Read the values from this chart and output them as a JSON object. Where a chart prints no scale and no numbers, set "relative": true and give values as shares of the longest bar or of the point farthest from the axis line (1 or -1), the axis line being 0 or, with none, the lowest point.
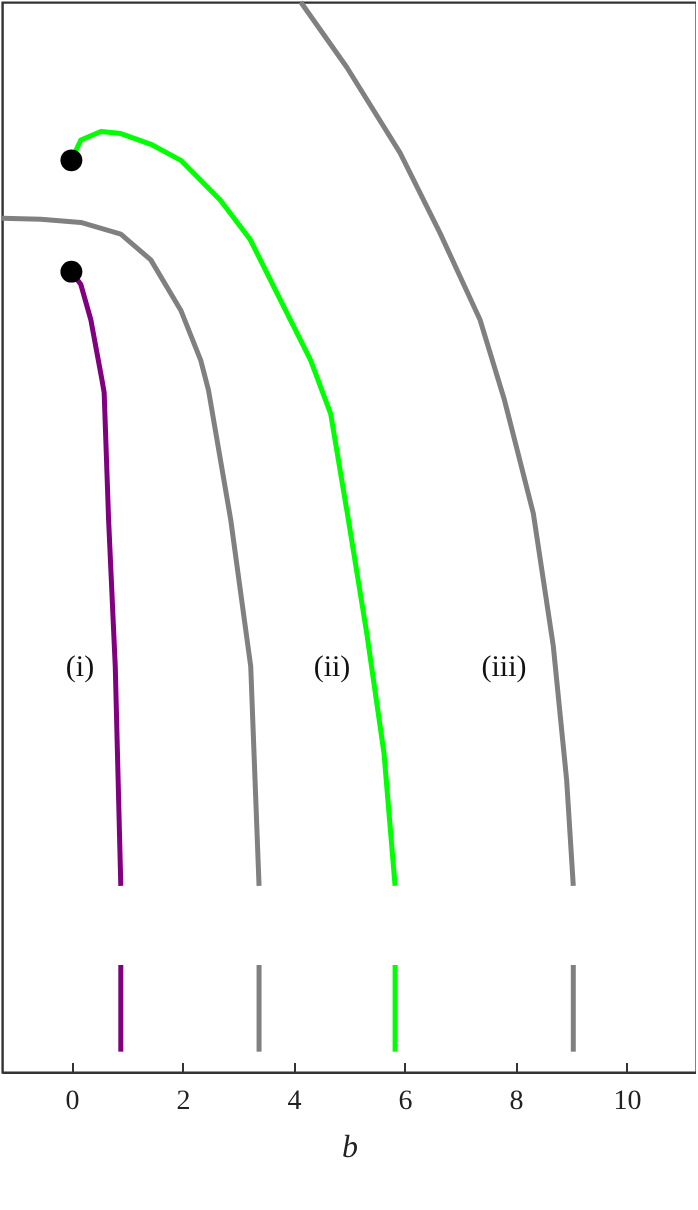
{
  "chart_data": {
    "type": "line",
    "xlabel": "b",
    "relative": true,
    "xlim": [
      -1.25,
      11.25
    ],
    "xticks": [
      0,
      2,
      4,
      6,
      8,
      10
    ],
    "tick_labels": "x",
    "grid": false,
    "line_style": "solid",
    "series": [
      {
        "color": "#800080",
        "x": [
          0,
          0.17,
          0.35,
          0.55,
          0.59,
          0.67,
          0.79,
          0.89
        ],
        "values": [
          0.748,
          0.736,
          0.703,
          0.647,
          0.635,
          0.516,
          0.379,
          0.174
        ]
      },
      {
        "color": "#808080",
        "x": [
          -1.25,
          -0.55,
          0.17,
          0.89,
          1.43,
          1.97,
          2.33,
          2.47,
          2.87,
          3.23,
          3.38
        ],
        "values": [
          0.798,
          0.797,
          0.794,
          0.783,
          0.759,
          0.712,
          0.665,
          0.637,
          0.516,
          0.379,
          0.174
        ]
      },
      {
        "color": "#00ff00",
        "x": [
          0,
          0.17,
          0.53,
          0.89,
          1.43,
          1.97,
          2.68,
          3.22,
          3.77,
          4.31,
          4.67,
          4.97,
          5.32,
          5.63,
          5.83
        ],
        "values": [
          0.852,
          0.871,
          0.879,
          0.877,
          0.867,
          0.852,
          0.815,
          0.778,
          0.721,
          0.665,
          0.615,
          0.522,
          0.41,
          0.298,
          0.174
        ]
      },
      {
        "color": "#808080",
        "x": [
          4.13,
          4.96,
          5.92,
          6.64,
          7.36,
          7.8,
          8.32,
          8.68,
          8.92,
          9.04
        ],
        "values": [
          1.0,
          0.939,
          0.859,
          0.784,
          0.703,
          0.628,
          0.522,
          0.398,
          0.273,
          0.174
        ]
      },
      {
        "color": "#800080",
        "x": [
          0.89,
          0.89
        ],
        "values": [
          0.1,
          0.019
        ]
      },
      {
        "color": "#808080",
        "x": [
          3.38,
          3.38
        ],
        "values": [
          0.1,
          0.019
        ]
      },
      {
        "color": "#00ff00",
        "x": [
          5.83,
          5.83
        ],
        "values": [
          0.1,
          0.019
        ]
      },
      {
        "color": "#808080",
        "x": [
          9.04,
          9.04
        ],
        "values": [
          0.1,
          0.019
        ]
      },
      {
        "type": "scatter",
        "marker": "circle",
        "color": "#000000",
        "x": [
          0,
          0
        ],
        "values": [
          0.748,
          0.852
        ]
      }
    ],
    "annotations": [
      "(i)",
      "(ii)",
      "(iii)"
    ]
  }
}
